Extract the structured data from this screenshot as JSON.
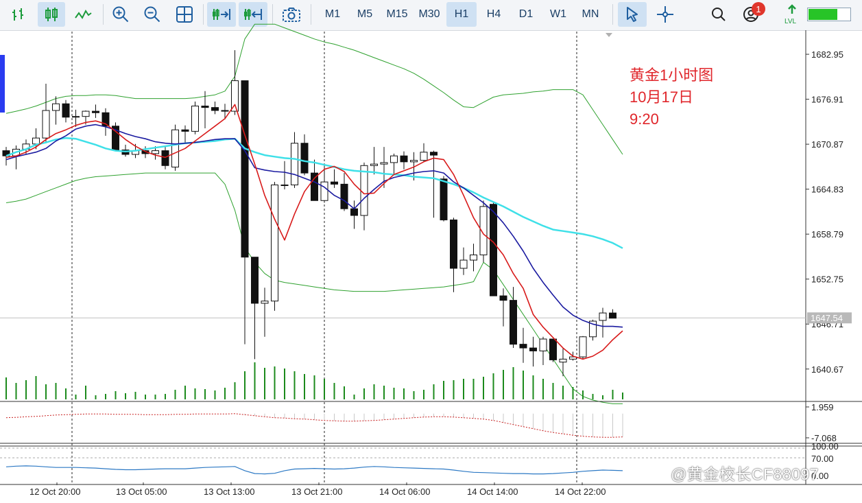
{
  "toolbar": {
    "tools": [
      "bar-chart-icon",
      "candlestick-icon",
      "line-chart-icon",
      "zoom-in-icon",
      "zoom-out-icon",
      "grid-icon",
      "autoscroll-icon",
      "chart-shift-icon",
      "screenshot-icon"
    ],
    "timeframes": [
      "M1",
      "M5",
      "M15",
      "M30",
      "H1",
      "H4",
      "D1",
      "W1",
      "MN"
    ],
    "active_timeframe": "H1",
    "right_tools": [
      "cursor-icon",
      "crosshair-icon",
      "search-icon",
      "account-icon",
      "signal-level-icon"
    ],
    "notification_count": "1",
    "level_label": "LVL",
    "signal_strength": 0.7
  },
  "annotation": {
    "line1": "黄金1小时图",
    "line2": "10月17日",
    "line3": "9:20"
  },
  "watermark": "@黄金校长CF88097",
  "chart_data": {
    "type": "candlestick",
    "symbol": "XAUUSD",
    "timeframe": "H1",
    "price_axis": {
      "ticks": [
        1682.95,
        1676.91,
        1670.87,
        1664.83,
        1658.79,
        1652.75,
        1646.71,
        1640.67
      ],
      "range": [
        1636.5,
        1686.0
      ],
      "current_price": 1647.54,
      "current_price_label": "1647.54"
    },
    "time_axis": {
      "labels": [
        "12 Oct 20:00",
        "13 Oct 05:00",
        "13 Oct 13:00",
        "13 Oct 21:00",
        "14 Oct 06:00",
        "14 Oct 14:00",
        "14 Oct 22:00"
      ],
      "session_separators": 3
    },
    "candles": [
      [
        1670.0,
        1670.5,
        1668.0,
        1669.3
      ],
      [
        1669.3,
        1670.7,
        1667.5,
        1670.2
      ],
      [
        1670.2,
        1671.5,
        1669.5,
        1670.9
      ],
      [
        1670.9,
        1673.0,
        1670.2,
        1671.7
      ],
      [
        1671.7,
        1679.0,
        1671.0,
        1675.4
      ],
      [
        1675.4,
        1677.3,
        1673.5,
        1676.3
      ],
      [
        1676.3,
        1676.8,
        1673.8,
        1674.5
      ],
      [
        1674.5,
        1675.5,
        1673.2,
        1674.6
      ],
      [
        1674.6,
        1675.4,
        1673.5,
        1675.3
      ],
      [
        1675.3,
        1676.2,
        1674.4,
        1675.1
      ],
      [
        1675.1,
        1675.7,
        1672.0,
        1673.3
      ],
      [
        1673.3,
        1673.8,
        1670.0,
        1670.1
      ],
      [
        1670.1,
        1670.8,
        1669.2,
        1669.5
      ],
      [
        1669.5,
        1670.9,
        1669.0,
        1670.0
      ],
      [
        1670.0,
        1670.6,
        1669.0,
        1669.6
      ],
      [
        1669.6,
        1670.6,
        1668.8,
        1670.0
      ],
      [
        1670.0,
        1670.5,
        1667.5,
        1668.0
      ],
      [
        1667.8,
        1673.5,
        1667.3,
        1672.8
      ],
      [
        1672.8,
        1673.4,
        1670.9,
        1672.6
      ],
      [
        1672.6,
        1676.6,
        1672.2,
        1676.0
      ],
      [
        1676.0,
        1678.0,
        1673.0,
        1675.8
      ],
      [
        1675.8,
        1676.6,
        1674.9,
        1675.4
      ],
      [
        1675.4,
        1676.3,
        1674.2,
        1675.3
      ],
      [
        1675.3,
        1683.5,
        1674.8,
        1679.4
      ],
      [
        1679.4,
        1679.4,
        1644.0,
        1655.7
      ],
      [
        1655.7,
        1655.7,
        1642.0,
        1649.5
      ],
      [
        1649.5,
        1651.6,
        1645.0,
        1649.8
      ],
      [
        1649.8,
        1665.8,
        1648.5,
        1665.4
      ],
      [
        1665.4,
        1668.6,
        1664.8,
        1665.4
      ],
      [
        1665.4,
        1672.5,
        1665.0,
        1671.0
      ],
      [
        1671.0,
        1672.2,
        1666.7,
        1667.0
      ],
      [
        1667.0,
        1668.8,
        1663.5,
        1663.3
      ],
      [
        1663.3,
        1668.0,
        1663.0,
        1665.8
      ],
      [
        1665.8,
        1667.5,
        1665.0,
        1665.5
      ],
      [
        1665.5,
        1667.0,
        1661.9,
        1662.2
      ],
      [
        1662.2,
        1663.3,
        1659.5,
        1661.3
      ],
      [
        1661.3,
        1668.4,
        1659.3,
        1668.0
      ],
      [
        1668.0,
        1670.5,
        1666.8,
        1668.2
      ],
      [
        1668.2,
        1670.5,
        1665.0,
        1668.4
      ],
      [
        1668.4,
        1669.6,
        1666.8,
        1669.3
      ],
      [
        1669.3,
        1669.9,
        1667.5,
        1668.5
      ],
      [
        1668.5,
        1669.8,
        1666.0,
        1668.7
      ],
      [
        1668.7,
        1671.0,
        1668.5,
        1669.8
      ],
      [
        1669.8,
        1670.0,
        1661.0,
        1669.4
      ],
      [
        1666.2,
        1666.6,
        1660.5,
        1660.7
      ],
      [
        1660.7,
        1661.0,
        1651.0,
        1654.2
      ],
      [
        1654.2,
        1657.0,
        1653.3,
        1655.3
      ],
      [
        1655.3,
        1657.5,
        1653.8,
        1656.0
      ],
      [
        1656.0,
        1663.3,
        1655.0,
        1662.5
      ],
      [
        1662.8,
        1663.0,
        1650.5,
        1650.5
      ],
      [
        1650.5,
        1651.5,
        1646.4,
        1649.9
      ],
      [
        1649.9,
        1651.7,
        1643.5,
        1644.0
      ],
      [
        1644.0,
        1646.2,
        1641.5,
        1643.5
      ],
      [
        1643.5,
        1645.0,
        1641.0,
        1643.1
      ],
      [
        1643.1,
        1645.0,
        1641.2,
        1644.7
      ],
      [
        1644.7,
        1644.7,
        1641.6,
        1641.9
      ],
      [
        1641.6,
        1643.5,
        1639.7,
        1642.0
      ],
      [
        1642.0,
        1643.0,
        1641.8,
        1642.3
      ],
      [
        1642.3,
        1645.1,
        1642.0,
        1645.0
      ],
      [
        1645.0,
        1647.3,
        1644.5,
        1647.1
      ],
      [
        1647.2,
        1648.9,
        1644.9,
        1648.2
      ],
      [
        1648.2,
        1648.7,
        1647.5,
        1647.5
      ]
    ],
    "ma_red": [
      1669.1,
      1669.3,
      1669.8,
      1670.5,
      1671.5,
      1672.3,
      1672.8,
      1673.4,
      1673.8,
      1674.0,
      1673.6,
      1672.6,
      1671.5,
      1670.6,
      1669.9,
      1669.4,
      1669.1,
      1669.7,
      1670.3,
      1671.3,
      1672.3,
      1673.3,
      1674.3,
      1676.2,
      1672.1,
      1668.2,
      1664.0,
      1660.8,
      1658.0,
      1661.5,
      1664.5,
      1666.3,
      1667.5,
      1667.9,
      1667.2,
      1665.5,
      1664.2,
      1664.3,
      1665.6,
      1666.8,
      1667.3,
      1667.8,
      1668.5,
      1669.0,
      1668.8,
      1666.8,
      1664.0,
      1661.0,
      1658.8,
      1657.7,
      1656.0,
      1653.5,
      1651.5,
      1648.0,
      1646.3,
      1644.9,
      1643.5,
      1642.4,
      1642.0,
      1642.4,
      1643.2,
      1644.6,
      1645.8
    ],
    "ma_blue": [
      1668.8,
      1669.2,
      1669.5,
      1669.8,
      1670.3,
      1671.3,
      1672.0,
      1672.9,
      1673.3,
      1673.5,
      1673.2,
      1672.8,
      1672.3,
      1671.9,
      1671.6,
      1671.2,
      1671.0,
      1670.9,
      1671.0,
      1671.1,
      1671.3,
      1671.5,
      1671.6,
      1671.6,
      1670.0,
      1667.7,
      1667.4,
      1667.2,
      1667.1,
      1666.8,
      1666.3,
      1665.8,
      1665.1,
      1664.0,
      1663.3,
      1662.2,
      1663.6,
      1664.8,
      1665.9,
      1666.4,
      1666.7,
      1667.0,
      1667.2,
      1667.3,
      1667.0,
      1665.8,
      1665.0,
      1664.0,
      1663.0,
      1661.8,
      1660.3,
      1658.5,
      1656.5,
      1654.2,
      1652.3,
      1650.6,
      1649.0,
      1647.9,
      1647.2,
      1646.7,
      1646.4,
      1646.4,
      1646.3
    ],
    "ma_cyan": [
      1669.3,
      1669.8,
      1670.2,
      1670.8,
      1671.1,
      1671.5,
      1671.7,
      1671.6,
      1671.2,
      1670.8,
      1670.3,
      1670.0,
      1669.9,
      1670.0,
      1670.2,
      1670.4,
      1670.6,
      1670.8,
      1671.0,
      1671.1,
      1671.2,
      1671.3,
      1671.5,
      1671.6,
      1670.3,
      1669.8,
      1669.4,
      1669.2,
      1669.0,
      1668.9,
      1668.6,
      1668.4,
      1668.1,
      1667.8,
      1667.5,
      1667.3,
      1667.2,
      1667.1,
      1666.9,
      1666.8,
      1666.7,
      1666.5,
      1666.4,
      1666.3,
      1665.9,
      1665.5,
      1665.0,
      1664.4,
      1663.7,
      1663.1,
      1662.5,
      1661.8,
      1661.1,
      1660.5,
      1659.9,
      1659.4,
      1659.2,
      1659.0,
      1658.8,
      1658.5,
      1658.1,
      1657.6,
      1656.9
    ],
    "bb_upper": [
      1675.0,
      1675.3,
      1675.6,
      1676.0,
      1676.5,
      1677.0,
      1677.3,
      1677.4,
      1677.4,
      1677.5,
      1677.5,
      1677.4,
      1677.2,
      1677.0,
      1677.0,
      1677.0,
      1677.0,
      1677.0,
      1677.0,
      1677.1,
      1677.3,
      1677.5,
      1678.0,
      1680.0,
      1685.0,
      1687.0,
      1687.0,
      1687.0,
      1686.5,
      1686.0,
      1685.5,
      1685.0,
      1684.6,
      1684.3,
      1683.9,
      1683.5,
      1683.0,
      1682.5,
      1682.0,
      1681.5,
      1681.0,
      1680.4,
      1679.6,
      1678.7,
      1677.8,
      1676.8,
      1675.9,
      1675.8,
      1676.5,
      1677.2,
      1677.5,
      1677.6,
      1677.7,
      1677.9,
      1678.0,
      1678.2,
      1678.2,
      1678.2,
      1677.5,
      1675.5,
      1673.5,
      1671.5,
      1669.5
    ],
    "bb_lower": [
      1663.0,
      1663.2,
      1663.5,
      1664.0,
      1664.5,
      1665.0,
      1665.5,
      1666.0,
      1666.3,
      1666.5,
      1666.6,
      1666.7,
      1666.8,
      1666.9,
      1667.0,
      1667.0,
      1667.0,
      1667.0,
      1667.0,
      1667.0,
      1667.0,
      1667.0,
      1665.5,
      1662.0,
      1657.0,
      1655.0,
      1653.5,
      1652.6,
      1652.3,
      1652.1,
      1651.9,
      1651.7,
      1651.5,
      1651.3,
      1651.2,
      1651.1,
      1651.1,
      1651.1,
      1651.1,
      1651.2,
      1651.3,
      1651.4,
      1651.5,
      1651.6,
      1651.7,
      1651.9,
      1652.1,
      1652.4,
      1655.0,
      1654.0,
      1652.0,
      1650.0,
      1648.0,
      1646.0,
      1644.0,
      1642.0,
      1640.0,
      1638.0,
      1637.0,
      1636.5,
      1636.2,
      1636.0,
      1636.0
    ],
    "bb_middle_visible_from": 42,
    "volume": [
      32,
      24,
      28,
      34,
      22,
      24,
      16,
      7,
      20,
      6,
      8,
      12,
      9,
      11,
      7,
      7,
      8,
      14,
      20,
      16,
      15,
      13,
      17,
      25,
      41,
      54,
      46,
      48,
      45,
      41,
      37,
      35,
      30,
      24,
      19,
      7,
      16,
      22,
      20,
      17,
      16,
      12,
      14,
      22,
      27,
      28,
      30,
      30,
      33,
      38,
      43,
      47,
      42,
      35,
      30,
      24,
      20,
      18,
      13,
      8,
      6,
      14,
      10
    ]
  },
  "indicator_1": {
    "ticks": [
      "1.959",
      "-7.068"
    ],
    "values": [
      -1.2,
      -1.1,
      -0.9,
      -0.8,
      -0.6,
      -0.4,
      -0.3,
      -0.2,
      -0.1,
      -0.1,
      -0.1,
      -0.2,
      -0.2,
      -0.2,
      -0.3,
      -0.3,
      -0.3,
      -0.2,
      -0.2,
      -0.1,
      -0.1,
      -0.1,
      -0.1,
      0.0,
      -0.3,
      -0.6,
      -0.9,
      -1.2,
      -1.3,
      -1.5,
      -1.6,
      -1.8,
      -2.0,
      -2.1,
      -2.2,
      -2.2,
      -2.1,
      -2.0,
      -1.8,
      -1.6,
      -1.4,
      -1.2,
      -1.0,
      -0.9,
      -0.9,
      -1.0,
      -1.2,
      -1.4,
      -1.6,
      -2.0,
      -2.6,
      -3.2,
      -3.8,
      -4.4,
      -5.0,
      -5.5,
      -5.9,
      -6.3,
      -6.6,
      -6.8,
      -6.9,
      -6.9,
      -6.8
    ]
  },
  "indicator_2": {
    "ticks": [
      "100.00",
      "70.00",
      "0.00"
    ],
    "values": [
      42,
      44,
      45,
      44,
      42,
      40,
      40,
      40,
      39,
      38,
      36,
      34,
      33,
      33,
      34,
      35,
      36,
      36,
      36,
      38,
      40,
      41,
      42,
      43,
      30,
      21,
      20,
      22,
      30,
      35,
      36,
      37,
      36,
      35,
      36,
      38,
      41,
      43,
      42,
      40,
      39,
      38,
      37,
      36,
      35,
      32,
      28,
      25,
      24,
      23,
      22,
      21,
      21,
      20,
      20,
      21,
      23,
      25,
      28,
      30,
      32,
      31,
      30
    ]
  }
}
